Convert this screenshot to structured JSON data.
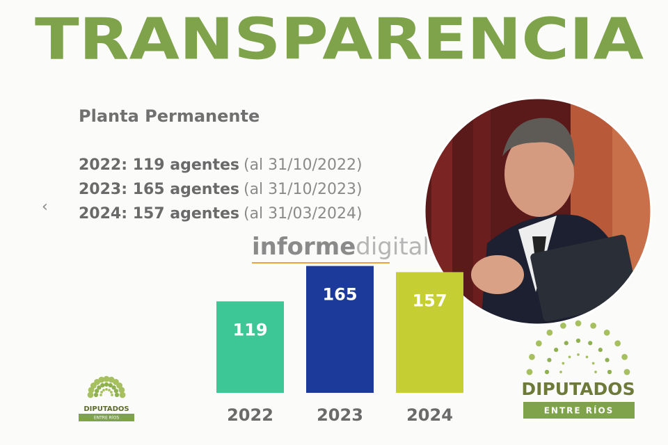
{
  "chart_data": {
    "type": "bar",
    "title": "TRANSPARENCIA",
    "subtitle": "Planta Permanente",
    "annotations": [
      {
        "text": "2022: 119 agentes",
        "note": "(al 31/10/2022)"
      },
      {
        "text": "2023: 165 agentes",
        "note": "(al 31/10/2023)"
      },
      {
        "text": "2024: 157 agentes",
        "note": "(al 31/03/2024)"
      }
    ],
    "categories": [
      "2022",
      "2023",
      "2024"
    ],
    "values": [
      119,
      165,
      157
    ],
    "colors": [
      "#3dc796",
      "#1b3a9a",
      "#c5cf33"
    ],
    "ylim": [
      0,
      170
    ]
  },
  "nav": "‹",
  "watermark": [
    "informe",
    "digital"
  ],
  "logos": [
    {
      "name": "DIPUTADOS",
      "sub": "ENTRE RÍOS"
    },
    {
      "name": "DIPUTADOS",
      "sub": "ENTRE RÍOS"
    }
  ]
}
